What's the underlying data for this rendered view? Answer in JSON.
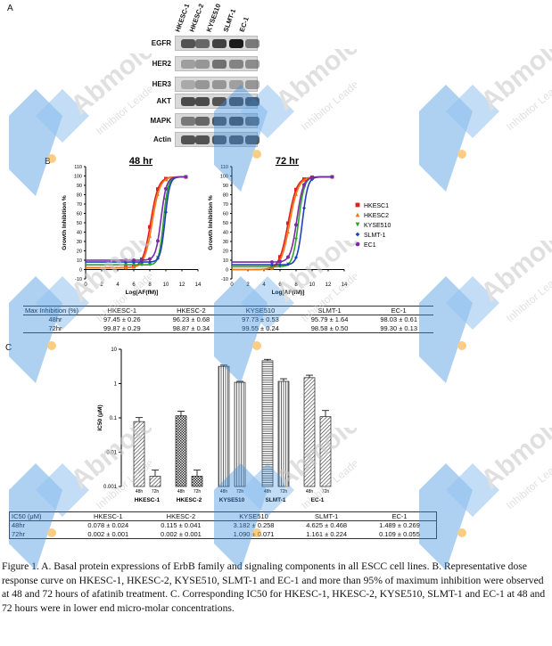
{
  "panels": {
    "a": "A",
    "b": "B",
    "c": "C"
  },
  "blot": {
    "cell_lines": [
      "HKESC-1",
      "HKESC-2",
      "KYSE510",
      "SLMT-1",
      "EC-1"
    ],
    "proteins": [
      "EGFR",
      "HER2",
      "HER3",
      "AKT",
      "MAPK",
      "Actin"
    ]
  },
  "dose_response": {
    "y_label": "Growth Inhibition %",
    "x_label": "Log[AF(fM)]",
    "x_ticks": [
      "0",
      "2",
      "4",
      "6",
      "8",
      "10",
      "12",
      "14"
    ],
    "y_ticks": [
      "-10",
      "0",
      "10",
      "20",
      "30",
      "40",
      "50",
      "60",
      "70",
      "80",
      "90",
      "100",
      "110"
    ],
    "legend": [
      "HKESC1",
      "HKESC2",
      "KYSE510",
      "SLMT-1",
      "EC1"
    ],
    "plots": [
      {
        "title": "48 hr"
      },
      {
        "title": "72 hr"
      }
    ]
  },
  "chart_data": [
    {
      "type": "line",
      "title": "48 hr",
      "xlabel": "Log[AF(fM)]",
      "ylabel": "Growth Inhibition %",
      "xlim": [
        0,
        14
      ],
      "ylim": [
        -10,
        110
      ],
      "series": [
        {
          "name": "HKESC1",
          "color": "#e0201b",
          "ic50": 8.1,
          "slope": 0.9,
          "bottom": 2,
          "top": 99
        },
        {
          "name": "HKESC2",
          "color": "#f07a1a",
          "ic50": 8.3,
          "slope": 0.9,
          "bottom": 2,
          "top": 99
        },
        {
          "name": "KYSE510",
          "color": "#2aa52a",
          "ic50": 9.7,
          "slope": 1.5,
          "bottom": 5,
          "top": 99
        },
        {
          "name": "SLMT-1",
          "color": "#1f3fbf",
          "ic50": 9.9,
          "slope": 1.5,
          "bottom": 8,
          "top": 99
        },
        {
          "name": "EC1",
          "color": "#7a2aa5",
          "ic50": 9.4,
          "slope": 1.3,
          "bottom": 10,
          "top": 99
        }
      ]
    },
    {
      "type": "line",
      "title": "72 hr",
      "xlabel": "Log[AF(fM)]",
      "ylabel": "Growth Inhibition %",
      "xlim": [
        0,
        14
      ],
      "ylim": [
        -10,
        110
      ],
      "series": [
        {
          "name": "HKESC1",
          "color": "#e0201b",
          "ic50": 7.0,
          "slope": 0.8,
          "bottom": 0,
          "top": 99
        },
        {
          "name": "HKESC2",
          "color": "#f07a1a",
          "ic50": 7.2,
          "slope": 0.8,
          "bottom": 0,
          "top": 99
        },
        {
          "name": "KYSE510",
          "color": "#2aa52a",
          "ic50": 8.3,
          "slope": 1.2,
          "bottom": 3,
          "top": 99
        },
        {
          "name": "SLMT-1",
          "color": "#1f3fbf",
          "ic50": 8.8,
          "slope": 1.3,
          "bottom": 5,
          "top": 99
        },
        {
          "name": "EC1",
          "color": "#7a2aa5",
          "ic50": 8.1,
          "slope": 1.1,
          "bottom": 8,
          "top": 99
        }
      ]
    },
    {
      "type": "bar",
      "ylabel": "IC50 (μM)",
      "y_scale": "log",
      "ylim": [
        0.001,
        10
      ],
      "y_ticks": [
        "10",
        "1",
        "0.1",
        "0.01",
        "0.001"
      ],
      "categories": [
        "HKESC-1",
        "HKESC-2",
        "KYSE510",
        "SLMT-1",
        "EC-1"
      ],
      "series": [
        {
          "name": "48h",
          "values": [
            0.078,
            0.115,
            3.182,
            4.625,
            1.489
          ],
          "errors": [
            0.024,
            0.041,
            0.258,
            0.468,
            0.269
          ]
        },
        {
          "name": "72h",
          "values": [
            0.002,
            0.002,
            1.09,
            1.161,
            0.109
          ],
          "errors": [
            0.001,
            0.001,
            0.071,
            0.224,
            0.055
          ]
        }
      ],
      "bar_labels": [
        "48h",
        "72h"
      ]
    }
  ],
  "max_inhibition_table": {
    "headers": [
      "Max Inhibition (%)",
      "HKESC-1",
      "HKESC-2",
      "KYSE510",
      "SLMT-1",
      "EC-1"
    ],
    "rows": [
      [
        "48hr",
        "97.45 ± 0.26",
        "96.23 ± 0.68",
        "97.73 ± 0.53",
        "95.79 ± 1.64",
        "98.03 ± 0.61"
      ],
      [
        "72hr",
        "99.87 ± 0.29",
        "98.87 ± 0.34",
        "99.55 ± 0.24",
        "98.58 ± 0.50",
        "99.30 ± 0.13"
      ]
    ]
  },
  "ic50_table": {
    "headers": [
      "IC50 (μM)",
      "HKESC-1",
      "HKESC-2",
      "KYSE510",
      "SLMT-1",
      "EC-1"
    ],
    "rows": [
      [
        "48hr",
        "0.078 ± 0.024",
        "0.115 ± 0.041",
        "3.182 ± 0.258",
        "4.625 ± 0.468",
        "1.489 ± 0.269"
      ],
      [
        "72hr",
        "0.002 ± 0.001",
        "0.002 ± 0.001",
        "1.090 ± 0.071",
        "1.161 ± 0.224",
        "0.109 ± 0.055"
      ]
    ]
  },
  "caption": "Figure 1. A. Basal protein expressions of ErbB family and signaling components in all ESCC cell lines. B. Representative dose response curve on HKESC-1, HKESC-2, KYSE510, SLMT-1 and EC-1 and more than 95% of maximum inhibition were observed at 48 and 72 hours of afatinib treatment. C. Corresponding IC50 for HKESC-1, HKESC-2, KYSE510, SLMT-1 and EC-1 at 48 and 72 hours were in lower end micro-molar concentrations.",
  "watermark": {
    "brand": "Abmole",
    "tagline": "Inhibitor Leader",
    "colors": {
      "blue": "#3b8fe0",
      "orange": "#f5a623"
    }
  }
}
